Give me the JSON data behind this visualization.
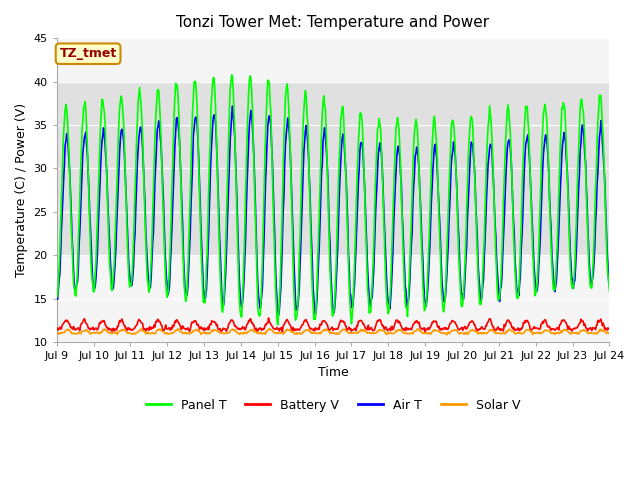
{
  "title": "Tonzi Tower Met: Temperature and Power",
  "xlabel": "Time",
  "ylabel": "Temperature (C) / Power (V)",
  "ylim": [
    10,
    45
  ],
  "xlim": [
    0,
    360
  ],
  "bg_shade_ymin": 20,
  "bg_shade_ymax": 40,
  "bg_shade_color": "#e0e0e0",
  "annotation_text": "TZ_tmet",
  "annotation_bg": "#ffffcc",
  "annotation_border": "#cc8800",
  "annotation_text_color": "#990000",
  "x_tick_labels": [
    "Jul 9",
    "Jul 10",
    "Jul 11",
    "Jul 12",
    "Jul 13",
    "Jul 14",
    "Jul 15",
    "Jul 16",
    "Jul 17",
    "Jul 18",
    "Jul 19",
    "Jul 20",
    "Jul 21",
    "Jul 22",
    "Jul 23",
    "Jul 24"
  ],
  "x_tick_positions": [
    0,
    24,
    48,
    72,
    96,
    120,
    144,
    168,
    192,
    216,
    240,
    264,
    288,
    312,
    336,
    360
  ],
  "panel_t_color": "#00ff00",
  "battery_v_color": "#ff0000",
  "air_t_color": "#0000ff",
  "solar_v_color": "#ff9900",
  "line_width": 1.2,
  "title_fontsize": 11,
  "label_fontsize": 9,
  "tick_fontsize": 8,
  "legend_fontsize": 9,
  "figwidth": 6.4,
  "figheight": 4.8,
  "dpi": 100
}
